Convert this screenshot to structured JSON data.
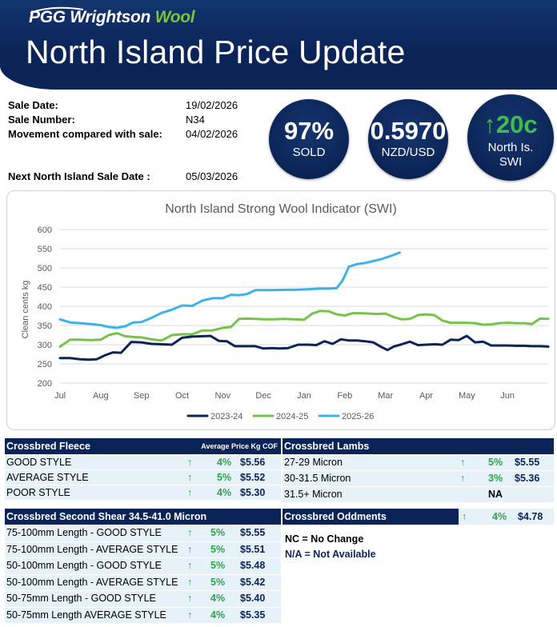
{
  "header": {
    "logo_main": "PGG Wrightson",
    "logo_accent": "Wool",
    "title": "North Island Price Update"
  },
  "sale_info": {
    "sale_date_label": "Sale Date:",
    "sale_date": "19/02/2026",
    "sale_number_label": "Sale Number:",
    "sale_number": "N34",
    "movement_label": "Movement compared with sale:",
    "movement_sale": "04/02/2026",
    "next_sale_label": "Next North Island Sale Date :",
    "next_sale": "05/03/2026"
  },
  "stats": {
    "sold_value": "97%",
    "sold_label": "SOLD",
    "fx_value": "0.5970",
    "fx_label": "NZD/USD",
    "swi_arrow": "↑",
    "swi_value": "20c",
    "swi_label_1": "North Is.",
    "swi_label_2": "SWI"
  },
  "colors": {
    "navy": "#0b2457",
    "series_2023": "#0b2457",
    "series_2024": "#77c24b",
    "series_2025": "#3bb3ea",
    "up_green": "#2aa54a"
  },
  "chart_data": {
    "type": "line",
    "title": "North Island Strong Wool Indicator (SWI)",
    "ylabel": "Clean cents kg",
    "xlabel": "",
    "ylim": [
      200,
      600
    ],
    "yticks": [
      200,
      250,
      300,
      350,
      400,
      450,
      500,
      550,
      600
    ],
    "categories": [
      "Jul",
      "Aug",
      "Sep",
      "Oct",
      "Nov",
      "Dec",
      "Jan",
      "Feb",
      "Mar",
      "Apr",
      "May",
      "Jun"
    ],
    "grid": true,
    "legend": "bottom",
    "series": [
      {
        "name": "2023-24",
        "color": "#0b2457",
        "x": [
          0,
          0.25,
          0.5,
          0.7,
          0.9,
          1.1,
          1.3,
          1.5,
          1.75,
          2.0,
          2.25,
          2.5,
          2.75,
          3.0,
          3.25,
          3.5,
          3.7,
          3.9,
          4.1,
          4.3,
          4.5,
          4.8,
          5.0,
          5.2,
          5.4,
          5.6,
          5.85,
          6.1,
          6.3,
          6.5,
          6.7,
          6.9,
          7.1,
          7.3,
          7.5,
          7.7,
          7.9,
          8.05,
          8.2,
          8.4,
          8.6,
          8.8,
          9.0,
          9.2,
          9.4,
          9.6,
          9.8,
          10.0,
          10.2,
          10.4,
          10.6,
          10.8,
          11.0,
          11.2,
          11.4,
          11.6,
          11.8,
          12.0
        ],
        "values": [
          265,
          265,
          262,
          261,
          262,
          272,
          280,
          279,
          307,
          306,
          302,
          301,
          300,
          318,
          321,
          322,
          323,
          310,
          309,
          296,
          296,
          296,
          290,
          291,
          290,
          291,
          300,
          300,
          299,
          309,
          302,
          314,
          311,
          311,
          309,
          306,
          294,
          286,
          295,
          301,
          308,
          299,
          300,
          301,
          300,
          313,
          312,
          323,
          306,
          308,
          298,
          298,
          298,
          297,
          297,
          296,
          296,
          295
        ]
      },
      {
        "name": "2024-25",
        "color": "#77c24b",
        "x": [
          0,
          0.25,
          0.5,
          0.75,
          1.0,
          1.2,
          1.4,
          1.6,
          1.8,
          2.0,
          2.25,
          2.5,
          2.75,
          3.0,
          3.25,
          3.5,
          3.75,
          4.0,
          4.2,
          4.4,
          4.6,
          4.8,
          5.0,
          5.25,
          5.5,
          5.75,
          6.0,
          6.2,
          6.4,
          6.6,
          6.8,
          7.0,
          7.2,
          7.4,
          7.6,
          7.8,
          8.0,
          8.2,
          8.4,
          8.6,
          8.8,
          9.0,
          9.2,
          9.4,
          9.6,
          9.8,
          10.0,
          10.2,
          10.4,
          10.6,
          10.8,
          11.0,
          11.2,
          11.4,
          11.6,
          11.8,
          12.0
        ],
        "values": [
          295,
          313,
          313,
          312,
          313,
          325,
          330,
          322,
          320,
          319,
          314,
          311,
          325,
          327,
          327,
          337,
          337,
          344,
          346,
          367,
          368,
          367,
          366,
          366,
          367,
          366,
          365,
          381,
          388,
          387,
          379,
          376,
          382,
          382,
          381,
          380,
          381,
          372,
          366,
          367,
          377,
          379,
          377,
          363,
          357,
          357,
          357,
          356,
          352,
          353,
          356,
          357,
          356,
          356,
          354,
          368,
          367
        ]
      },
      {
        "name": "2025-26",
        "color": "#3bb3ea",
        "x": [
          0,
          0.25,
          0.5,
          0.75,
          1.0,
          1.2,
          1.4,
          1.6,
          1.8,
          2.0,
          2.25,
          2.5,
          2.75,
          3.0,
          3.25,
          3.5,
          3.75,
          4.0,
          4.2,
          4.4,
          4.6,
          4.8,
          5.0,
          5.25,
          5.5,
          5.75,
          6.0,
          6.2,
          6.4,
          6.6,
          6.8,
          6.95,
          7.1,
          7.3,
          7.5,
          7.7,
          7.9,
          8.1,
          8.35
        ],
        "values": [
          366,
          358,
          356,
          354,
          351,
          346,
          344,
          348,
          358,
          359,
          370,
          383,
          391,
          402,
          401,
          415,
          421,
          421,
          430,
          429,
          432,
          442,
          442,
          442,
          443,
          443,
          444,
          445,
          446,
          446,
          447,
          468,
          503,
          510,
          513,
          518,
          523,
          530,
          540
        ]
      }
    ]
  },
  "fleece": {
    "title": "Crossbred Fleece",
    "sub": "Average Price Kg COF",
    "rows": [
      {
        "label": "GOOD STYLE",
        "arrow": "↑",
        "pct": "4%",
        "price": "$5.56"
      },
      {
        "label": "AVERAGE STYLE",
        "arrow": "↑",
        "pct": "5%",
        "price": "$5.52"
      },
      {
        "label": "POOR STYLE",
        "arrow": "↑",
        "pct": "4%",
        "price": "$5.30"
      }
    ]
  },
  "lambs": {
    "title": "Crossbred Lambs",
    "rows": [
      {
        "label": "27-29 Micron",
        "arrow": "↑",
        "pct": "5%",
        "price": "$5.55"
      },
      {
        "label": "30-31.5 Micron",
        "arrow": "↑",
        "pct": "3%",
        "price": "$5.36"
      },
      {
        "label": "31.5+ Micron",
        "arrow": "",
        "pct": "NA",
        "price": ""
      }
    ]
  },
  "second_shear": {
    "title": "Crossbred Second Shear 34.5-41.0 Micron",
    "rows": [
      {
        "label": "75-100mm Length - GOOD STYLE",
        "arrow": "↑",
        "pct": "5%",
        "price": "$5.55"
      },
      {
        "label": "75-100mm Length - AVERAGE STYLE",
        "arrow": "↑",
        "pct": "5%",
        "price": "$5.51"
      },
      {
        "label": "50-100mm Length - GOOD STYLE",
        "arrow": "↑",
        "pct": "5%",
        "price": "$5.48"
      },
      {
        "label": "50-100mm Length - AVERAGE STYLE",
        "arrow": "↑",
        "pct": "5%",
        "price": "$5.42"
      },
      {
        "label": "50-75mm Length - GOOD STYLE",
        "arrow": "↑",
        "pct": "4%",
        "price": "$5.40"
      },
      {
        "label": "50-75mm Length AVERAGE STYLE",
        "arrow": "↑",
        "pct": "4%",
        "price": "$5.35"
      }
    ]
  },
  "oddments": {
    "title": "Crossbred Oddments",
    "arrow": "↑",
    "pct": "4%",
    "price": "$4.78"
  },
  "notes": {
    "nc": "NC = No Change",
    "na": "N/A = Not Available"
  }
}
